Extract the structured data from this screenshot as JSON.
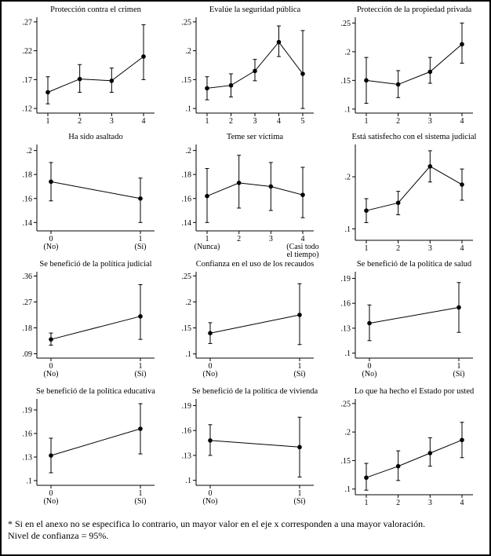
{
  "footnote": {
    "line1": "* Si en el anexo no se especifica lo contrario, un mayor valor en el eje x corresponden a una mayor valoración.",
    "line2": "Nivel de confianza = 95%."
  },
  "chart_data": [
    {
      "type": "scatter",
      "title": "Protección contra el crimen",
      "x_ticks": [
        "1",
        "2",
        "3",
        "4"
      ],
      "x_sub": null,
      "y": [
        0.148,
        0.171,
        0.168,
        0.21
      ],
      "ci_low": [
        0.128,
        0.148,
        0.148,
        0.17
      ],
      "ci_high": [
        0.175,
        0.196,
        0.19,
        0.265
      ],
      "y_tick_values": [
        0.12,
        0.17,
        0.22,
        0.27
      ],
      "y_tick_labels": [
        ".12",
        ".17",
        ".22",
        ".27"
      ],
      "ylim": [
        0.112,
        0.278
      ]
    },
    {
      "type": "scatter",
      "title": "Evalúe la seguridad pública",
      "x_ticks": [
        "1",
        "2",
        "3",
        "4",
        "5"
      ],
      "x_sub": null,
      "y": [
        0.135,
        0.14,
        0.165,
        0.215,
        0.16
      ],
      "ci_low": [
        0.115,
        0.12,
        0.148,
        0.19,
        0.1
      ],
      "ci_high": [
        0.155,
        0.16,
        0.185,
        0.243,
        0.235
      ],
      "y_tick_values": [
        0.1,
        0.15,
        0.2,
        0.25
      ],
      "y_tick_labels": [
        ".1",
        ".15",
        ".2",
        ".25"
      ],
      "ylim": [
        0.092,
        0.258
      ]
    },
    {
      "type": "scatter",
      "title": "Protección de la propiedad privada",
      "x_ticks": [
        "1",
        "2",
        "3",
        "4"
      ],
      "x_sub": null,
      "y": [
        0.15,
        0.143,
        0.165,
        0.213
      ],
      "ci_low": [
        0.11,
        0.12,
        0.145,
        0.18
      ],
      "ci_high": [
        0.19,
        0.167,
        0.19,
        0.25
      ],
      "y_tick_values": [
        0.1,
        0.15,
        0.2,
        0.25
      ],
      "y_tick_labels": [
        ".1",
        ".15",
        ".2",
        ".25"
      ],
      "ylim": [
        0.093,
        0.26
      ]
    },
    {
      "type": "scatter",
      "title": "Ha sido asaltado",
      "x_ticks": [
        "0",
        "1"
      ],
      "x_sub": [
        "(No)",
        "(Sí)"
      ],
      "y": [
        0.174,
        0.16
      ],
      "ci_low": [
        0.158,
        0.14
      ],
      "ci_high": [
        0.19,
        0.177
      ],
      "y_tick_values": [
        0.14,
        0.16,
        0.18,
        0.2
      ],
      "y_tick_labels": [
        ".14",
        ".16",
        ".18",
        ".2"
      ],
      "ylim": [
        0.133,
        0.205
      ]
    },
    {
      "type": "scatter",
      "title": "Teme ser víctima",
      "x_ticks": [
        "1",
        "2",
        "3",
        "4"
      ],
      "x_sub": [
        "(Nunca)",
        "",
        "",
        "(Casi todo|el tiempo)"
      ],
      "y": [
        0.162,
        0.173,
        0.17,
        0.163
      ],
      "ci_low": [
        0.14,
        0.152,
        0.15,
        0.144
      ],
      "ci_high": [
        0.185,
        0.196,
        0.19,
        0.186
      ],
      "y_tick_values": [
        0.14,
        0.16,
        0.18,
        0.2
      ],
      "y_tick_labels": [
        ".14",
        ".16",
        ".18",
        ".2"
      ],
      "ylim": [
        0.133,
        0.205
      ]
    },
    {
      "type": "scatter",
      "title": "Está satisfecho con el sistema judicial",
      "x_ticks": [
        "1",
        "2",
        "3",
        "4"
      ],
      "x_sub": null,
      "y": [
        0.135,
        0.15,
        0.22,
        0.185
      ],
      "ci_low": [
        0.112,
        0.127,
        0.19,
        0.155
      ],
      "ci_high": [
        0.158,
        0.172,
        0.25,
        0.215
      ],
      "y_tick_values": [
        0.1,
        0.2
      ],
      "y_tick_labels": [
        ".1",
        ".2"
      ],
      "ylim": [
        0.078,
        0.262
      ]
    },
    {
      "type": "scatter",
      "title": "Se benefició de la política judicial",
      "x_ticks": [
        "0",
        "1"
      ],
      "x_sub": [
        "(No)",
        "(Sí)"
      ],
      "y": [
        0.14,
        0.22
      ],
      "ci_low": [
        0.12,
        0.14
      ],
      "ci_high": [
        0.162,
        0.33
      ],
      "y_tick_values": [
        0.09,
        0.18,
        0.27,
        0.36
      ],
      "y_tick_labels": [
        ".09",
        ".18",
        ".27",
        ".36"
      ],
      "ylim": [
        0.075,
        0.375
      ]
    },
    {
      "type": "scatter",
      "title": "Confianza en el uso de los recaudos",
      "x_ticks": [
        "0",
        "1"
      ],
      "x_sub": [
        "(No)",
        "(Sí)"
      ],
      "y": [
        0.14,
        0.175
      ],
      "ci_low": [
        0.12,
        0.118
      ],
      "ci_high": [
        0.16,
        0.235
      ],
      "y_tick_values": [
        0.1,
        0.15,
        0.2,
        0.25
      ],
      "y_tick_labels": [
        ".1",
        ".15",
        ".2",
        ".25"
      ],
      "ylim": [
        0.092,
        0.258
      ]
    },
    {
      "type": "scatter",
      "title": "Se benefició de la política de salud",
      "x_ticks": [
        "0",
        "1"
      ],
      "x_sub": [
        "(No)",
        "(Sí)"
      ],
      "y": [
        0.136,
        0.155
      ],
      "ci_low": [
        0.115,
        0.125
      ],
      "ci_high": [
        0.158,
        0.185
      ],
      "y_tick_values": [
        0.1,
        0.13,
        0.16,
        0.19
      ],
      "y_tick_labels": [
        ".1",
        ".13",
        ".16",
        ".19"
      ],
      "ylim": [
        0.094,
        0.198
      ]
    },
    {
      "type": "scatter",
      "title": "Se benefició de la política educativa",
      "x_ticks": [
        "0",
        "1"
      ],
      "x_sub": [
        "(No)",
        "(Sí)"
      ],
      "y": [
        0.132,
        0.166
      ],
      "ci_low": [
        0.11,
        0.134
      ],
      "ci_high": [
        0.154,
        0.198
      ],
      "y_tick_values": [
        0.1,
        0.13,
        0.16,
        0.19
      ],
      "y_tick_labels": [
        ".1",
        ".13",
        ".16",
        ".19"
      ],
      "ylim": [
        0.094,
        0.204
      ]
    },
    {
      "type": "scatter",
      "title": "Se benefició de la política de vivienda",
      "x_ticks": [
        "0",
        "1"
      ],
      "x_sub": [
        "(No)",
        "(Sí)"
      ],
      "y": [
        0.148,
        0.14
      ],
      "ci_low": [
        0.13,
        0.104
      ],
      "ci_high": [
        0.167,
        0.176
      ],
      "y_tick_values": [
        0.1,
        0.13,
        0.16,
        0.19
      ],
      "y_tick_labels": [
        ".1",
        ".13",
        ".16",
        ".19"
      ],
      "ylim": [
        0.094,
        0.198
      ]
    },
    {
      "type": "scatter",
      "title": "Lo que ha hecho el Estado por usted",
      "x_ticks": [
        "1",
        "2",
        "3",
        "4"
      ],
      "x_sub": null,
      "y": [
        0.12,
        0.14,
        0.163,
        0.186
      ],
      "ci_low": [
        0.098,
        0.115,
        0.14,
        0.155
      ],
      "ci_high": [
        0.145,
        0.167,
        0.19,
        0.217
      ],
      "y_tick_values": [
        0.1,
        0.15,
        0.2,
        0.25
      ],
      "y_tick_labels": [
        ".1",
        ".15",
        ".2",
        ".25"
      ],
      "ylim": [
        0.09,
        0.258
      ]
    }
  ]
}
